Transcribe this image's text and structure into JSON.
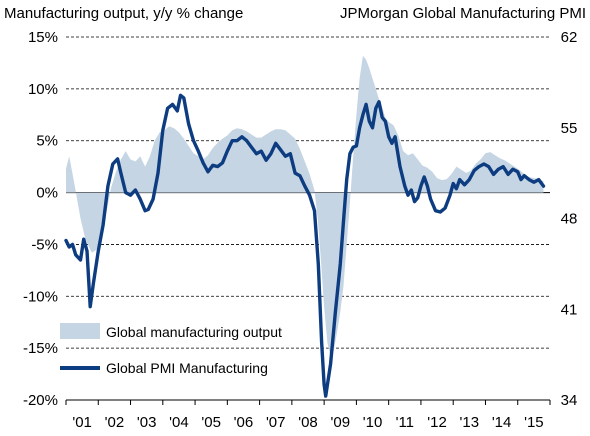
{
  "chart_data": {
    "type": "area",
    "left_axis_title": "Manufacturing output, y/y % change",
    "right_axis_title": "JPMorgan Global Manufacturing PMI",
    "x_tick_labels": [
      "'01",
      "'02",
      "'03",
      "'04",
      "'05",
      "'06",
      "'07",
      "'08",
      "'09",
      "'10",
      "'11",
      "'12",
      "'13",
      "'14",
      "'15"
    ],
    "x_range": [
      2001.0,
      2016.0
    ],
    "y_left": {
      "ticks": [
        15,
        10,
        5,
        0,
        -5,
        -10,
        -15,
        -20
      ],
      "tick_labels": [
        "15%",
        "10%",
        "5%",
        "0%",
        "-5%",
        "-10%",
        "-15%",
        "-20%"
      ],
      "range": [
        -20,
        15
      ]
    },
    "y_right": {
      "ticks": [
        62,
        55,
        48,
        41,
        34
      ],
      "tick_labels": [
        "62",
        "55",
        "48",
        "41",
        "34"
      ],
      "range": [
        34,
        62
      ]
    },
    "grid": "horizontal dashed",
    "legend": "bottom-left",
    "series": [
      {
        "name": "Global manufacturing output",
        "kind": "area",
        "axis": "left",
        "color": "#c5d5e4",
        "points": [
          [
            2001.0,
            2.3
          ],
          [
            2001.1,
            3.5
          ],
          [
            2001.25,
            1.0
          ],
          [
            2001.45,
            -2.5
          ],
          [
            2001.6,
            -4.5
          ],
          [
            2001.8,
            -5.8
          ],
          [
            2001.95,
            -5.5
          ],
          [
            2002.1,
            -4.0
          ],
          [
            2002.25,
            -2.0
          ],
          [
            2002.4,
            0.5
          ],
          [
            2002.55,
            2.0
          ],
          [
            2002.7,
            3.2
          ],
          [
            2002.85,
            4.0
          ],
          [
            2003.0,
            3.2
          ],
          [
            2003.15,
            3.0
          ],
          [
            2003.3,
            3.5
          ],
          [
            2003.45,
            2.5
          ],
          [
            2003.6,
            3.5
          ],
          [
            2003.75,
            5.0
          ],
          [
            2003.9,
            5.8
          ],
          [
            2004.05,
            6.0
          ],
          [
            2004.2,
            6.4
          ],
          [
            2004.35,
            6.2
          ],
          [
            2004.5,
            5.8
          ],
          [
            2004.65,
            5.2
          ],
          [
            2004.8,
            4.5
          ],
          [
            2004.95,
            3.8
          ],
          [
            2005.1,
            3.5
          ],
          [
            2005.25,
            3.2
          ],
          [
            2005.4,
            3.6
          ],
          [
            2005.55,
            4.3
          ],
          [
            2005.7,
            4.8
          ],
          [
            2005.85,
            5.2
          ],
          [
            2006.0,
            5.5
          ],
          [
            2006.15,
            6.0
          ],
          [
            2006.3,
            6.2
          ],
          [
            2006.45,
            6.1
          ],
          [
            2006.6,
            5.9
          ],
          [
            2006.75,
            5.6
          ],
          [
            2006.9,
            5.3
          ],
          [
            2007.05,
            5.3
          ],
          [
            2007.2,
            5.6
          ],
          [
            2007.35,
            5.9
          ],
          [
            2007.5,
            6.1
          ],
          [
            2007.65,
            6.1
          ],
          [
            2007.8,
            6.0
          ],
          [
            2007.95,
            5.6
          ],
          [
            2008.1,
            5.2
          ],
          [
            2008.25,
            4.2
          ],
          [
            2008.4,
            3.0
          ],
          [
            2008.55,
            1.8
          ],
          [
            2008.7,
            0.2
          ],
          [
            2008.8,
            -2.5
          ],
          [
            2008.9,
            -6.5
          ],
          [
            2009.0,
            -11.0
          ],
          [
            2009.1,
            -14.5
          ],
          [
            2009.2,
            -15.8
          ],
          [
            2009.3,
            -15.2
          ],
          [
            2009.4,
            -13.5
          ],
          [
            2009.5,
            -11.5
          ],
          [
            2009.6,
            -9.0
          ],
          [
            2009.7,
            -5.0
          ],
          [
            2009.8,
            -1.0
          ],
          [
            2009.9,
            3.5
          ],
          [
            2010.0,
            7.5
          ],
          [
            2010.1,
            11.0
          ],
          [
            2010.2,
            13.2
          ],
          [
            2010.3,
            12.8
          ],
          [
            2010.4,
            12.0
          ],
          [
            2010.5,
            11.0
          ],
          [
            2010.6,
            10.0
          ],
          [
            2010.7,
            9.0
          ],
          [
            2010.8,
            8.2
          ],
          [
            2010.9,
            7.2
          ],
          [
            2011.0,
            6.8
          ],
          [
            2011.15,
            6.5
          ],
          [
            2011.3,
            5.5
          ],
          [
            2011.45,
            4.0
          ],
          [
            2011.6,
            3.6
          ],
          [
            2011.75,
            3.8
          ],
          [
            2011.9,
            3.2
          ],
          [
            2012.05,
            2.6
          ],
          [
            2012.2,
            2.4
          ],
          [
            2012.35,
            2.0
          ],
          [
            2012.5,
            1.4
          ],
          [
            2012.65,
            1.2
          ],
          [
            2012.8,
            1.3
          ],
          [
            2012.95,
            1.8
          ],
          [
            2013.1,
            2.5
          ],
          [
            2013.25,
            2.2
          ],
          [
            2013.4,
            1.9
          ],
          [
            2013.55,
            2.1
          ],
          [
            2013.7,
            2.8
          ],
          [
            2013.85,
            3.2
          ],
          [
            2014.0,
            3.8
          ],
          [
            2014.15,
            3.9
          ],
          [
            2014.3,
            3.6
          ],
          [
            2014.45,
            3.3
          ],
          [
            2014.6,
            3.1
          ],
          [
            2014.75,
            2.8
          ],
          [
            2014.9,
            2.5
          ],
          [
            2015.05,
            2.2
          ],
          [
            2015.2,
            1.8
          ],
          [
            2015.35,
            1.5
          ],
          [
            2015.5,
            1.4
          ],
          [
            2015.65,
            1.3
          ],
          [
            2015.8,
            1.1
          ]
        ]
      },
      {
        "name": "Global PMI Manufacturing",
        "kind": "line",
        "axis": "right",
        "color": "#0d3d80",
        "points": [
          [
            2001.0,
            46.3
          ],
          [
            2001.1,
            45.8
          ],
          [
            2001.2,
            46.0
          ],
          [
            2001.3,
            45.2
          ],
          [
            2001.45,
            44.8
          ],
          [
            2001.55,
            46.4
          ],
          [
            2001.65,
            45.5
          ],
          [
            2001.75,
            41.2
          ],
          [
            2001.85,
            43.0
          ],
          [
            2002.0,
            45.5
          ],
          [
            2002.15,
            47.5
          ],
          [
            2002.3,
            50.5
          ],
          [
            2002.45,
            52.2
          ],
          [
            2002.6,
            52.6
          ],
          [
            2002.7,
            51.5
          ],
          [
            2002.85,
            50.0
          ],
          [
            2003.0,
            49.8
          ],
          [
            2003.15,
            50.2
          ],
          [
            2003.3,
            49.5
          ],
          [
            2003.45,
            48.6
          ],
          [
            2003.55,
            48.7
          ],
          [
            2003.7,
            49.5
          ],
          [
            2003.85,
            51.5
          ],
          [
            2004.0,
            54.8
          ],
          [
            2004.15,
            56.5
          ],
          [
            2004.3,
            56.8
          ],
          [
            2004.45,
            56.3
          ],
          [
            2004.55,
            57.5
          ],
          [
            2004.65,
            57.3
          ],
          [
            2004.8,
            55.3
          ],
          [
            2004.95,
            54.0
          ],
          [
            2005.1,
            53.2
          ],
          [
            2005.25,
            52.3
          ],
          [
            2005.4,
            51.6
          ],
          [
            2005.55,
            52.1
          ],
          [
            2005.7,
            52.0
          ],
          [
            2005.85,
            52.3
          ],
          [
            2006.0,
            53.2
          ],
          [
            2006.15,
            54.0
          ],
          [
            2006.3,
            54.0
          ],
          [
            2006.45,
            54.3
          ],
          [
            2006.6,
            54.0
          ],
          [
            2006.75,
            53.5
          ],
          [
            2006.9,
            53.0
          ],
          [
            2007.05,
            53.2
          ],
          [
            2007.2,
            52.5
          ],
          [
            2007.35,
            53.0
          ],
          [
            2007.5,
            53.8
          ],
          [
            2007.65,
            53.3
          ],
          [
            2007.8,
            52.8
          ],
          [
            2007.95,
            53.0
          ],
          [
            2008.1,
            51.5
          ],
          [
            2008.25,
            51.3
          ],
          [
            2008.4,
            50.5
          ],
          [
            2008.55,
            49.8
          ],
          [
            2008.7,
            48.6
          ],
          [
            2008.82,
            44.5
          ],
          [
            2008.92,
            38.5
          ],
          [
            2009.0,
            35.2
          ],
          [
            2009.05,
            34.3
          ],
          [
            2009.2,
            36.8
          ],
          [
            2009.35,
            40.8
          ],
          [
            2009.5,
            44.5
          ],
          [
            2009.6,
            47.8
          ],
          [
            2009.7,
            51.0
          ],
          [
            2009.8,
            53.0
          ],
          [
            2009.9,
            53.5
          ],
          [
            2010.0,
            53.6
          ],
          [
            2010.1,
            55.0
          ],
          [
            2010.2,
            56.0
          ],
          [
            2010.3,
            56.8
          ],
          [
            2010.4,
            55.5
          ],
          [
            2010.5,
            55.0
          ],
          [
            2010.6,
            56.5
          ],
          [
            2010.7,
            57.0
          ],
          [
            2010.8,
            55.8
          ],
          [
            2010.9,
            55.5
          ],
          [
            2011.0,
            54.3
          ],
          [
            2011.1,
            53.8
          ],
          [
            2011.2,
            54.3
          ],
          [
            2011.35,
            52.0
          ],
          [
            2011.5,
            50.5
          ],
          [
            2011.6,
            49.8
          ],
          [
            2011.7,
            50.2
          ],
          [
            2011.8,
            49.3
          ],
          [
            2011.9,
            49.6
          ],
          [
            2012.0,
            50.5
          ],
          [
            2012.1,
            51.2
          ],
          [
            2012.2,
            50.5
          ],
          [
            2012.3,
            49.5
          ],
          [
            2012.45,
            48.6
          ],
          [
            2012.6,
            48.5
          ],
          [
            2012.75,
            48.8
          ],
          [
            2012.9,
            49.8
          ],
          [
            2013.0,
            50.7
          ],
          [
            2013.1,
            50.3
          ],
          [
            2013.2,
            51.0
          ],
          [
            2013.35,
            50.6
          ],
          [
            2013.5,
            51.0
          ],
          [
            2013.65,
            51.7
          ],
          [
            2013.8,
            52.0
          ],
          [
            2013.95,
            52.2
          ],
          [
            2014.1,
            52.0
          ],
          [
            2014.25,
            51.4
          ],
          [
            2014.4,
            51.8
          ],
          [
            2014.55,
            52.0
          ],
          [
            2014.7,
            51.4
          ],
          [
            2014.85,
            51.8
          ],
          [
            2015.0,
            51.6
          ],
          [
            2015.1,
            51.0
          ],
          [
            2015.2,
            51.3
          ],
          [
            2015.35,
            51.0
          ],
          [
            2015.5,
            50.8
          ],
          [
            2015.65,
            51.0
          ],
          [
            2015.8,
            50.5
          ]
        ]
      }
    ]
  }
}
